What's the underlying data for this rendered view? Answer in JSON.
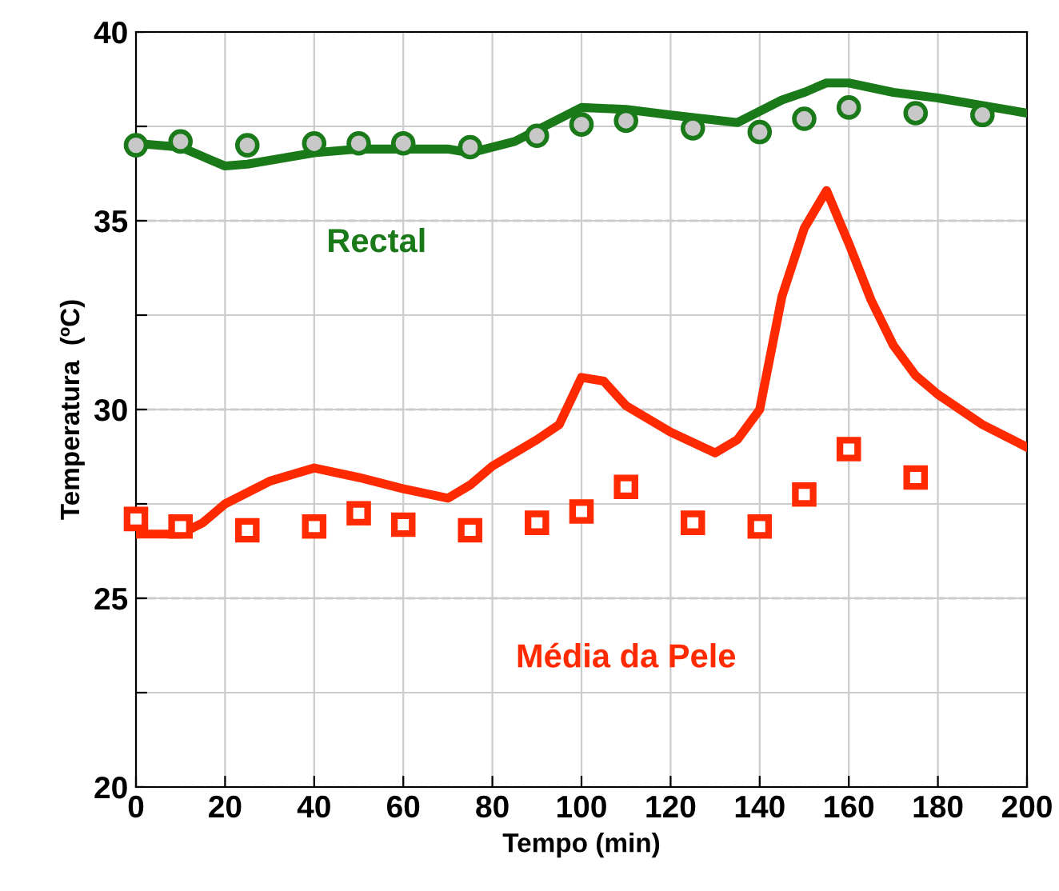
{
  "chart_data": {
    "type": "line",
    "xlabel": "Tempo (min)",
    "ylabel": "Temperatura  (ºC)",
    "xlim": [
      0,
      200
    ],
    "xticks": [
      0,
      20,
      40,
      60,
      80,
      100,
      120,
      140,
      160,
      180,
      200
    ],
    "ylim": [
      20,
      40
    ],
    "yticks": [
      20,
      {
        "value": 22.5,
        "label": null
      },
      25,
      {
        "value": 27.5,
        "label": null
      },
      30,
      {
        "value": 32.5,
        "label": null
      },
      35,
      {
        "value": 37.5,
        "label": null
      },
      40
    ],
    "grid": true,
    "legend": false,
    "series": [
      {
        "name": "Rectal",
        "color": "#1a7a1a",
        "marker": "none",
        "x": [
          0,
          10,
          20,
          25,
          40,
          50,
          70,
          75,
          85,
          100,
          110,
          120,
          135,
          145,
          150,
          155,
          160,
          170,
          180,
          200
        ],
        "values": [
          37.05,
          36.95,
          36.45,
          36.5,
          36.8,
          36.9,
          36.9,
          36.8,
          37.1,
          38.0,
          37.95,
          37.8,
          37.6,
          38.2,
          38.4,
          38.65,
          38.65,
          38.4,
          38.25,
          37.85
        ]
      },
      {
        "type": "scatter",
        "color": "#1a7a1a",
        "marker": "circle",
        "x": [
          0,
          10,
          25,
          40,
          50,
          60,
          75,
          90,
          100,
          110,
          125,
          140,
          150,
          160,
          175,
          190
        ],
        "values": [
          37.0,
          37.1,
          37.0,
          37.05,
          37.05,
          37.05,
          36.95,
          37.25,
          37.55,
          37.65,
          37.45,
          37.35,
          37.7,
          38.0,
          37.85,
          37.8
        ]
      },
      {
        "name": "Média da Pele",
        "color": "#ff2a00",
        "marker": "none",
        "x": [
          0,
          10,
          15,
          20,
          30,
          40,
          50,
          60,
          70,
          75,
          80,
          90,
          95,
          100,
          105,
          110,
          120,
          130,
          135,
          140,
          145,
          150,
          155,
          160,
          165,
          170,
          175,
          180,
          190,
          200
        ],
        "values": [
          26.7,
          26.7,
          27.0,
          27.5,
          28.1,
          28.45,
          28.2,
          27.9,
          27.65,
          28.0,
          28.5,
          29.2,
          29.6,
          30.85,
          30.75,
          30.1,
          29.4,
          28.85,
          29.2,
          30.0,
          33.0,
          34.8,
          35.8,
          34.4,
          32.9,
          31.7,
          30.9,
          30.4,
          29.6,
          29.0
        ]
      },
      {
        "type": "scatter",
        "color": "#ff2a00",
        "marker": "square",
        "x": [
          0,
          10,
          25,
          40,
          50,
          60,
          75,
          90,
          100,
          110,
          125,
          140,
          150,
          160,
          175
        ],
        "values": [
          27.1,
          26.9,
          26.8,
          26.9,
          27.25,
          26.95,
          26.8,
          27.0,
          27.3,
          27.95,
          27.0,
          26.9,
          27.75,
          28.95,
          28.2
        ]
      }
    ]
  }
}
